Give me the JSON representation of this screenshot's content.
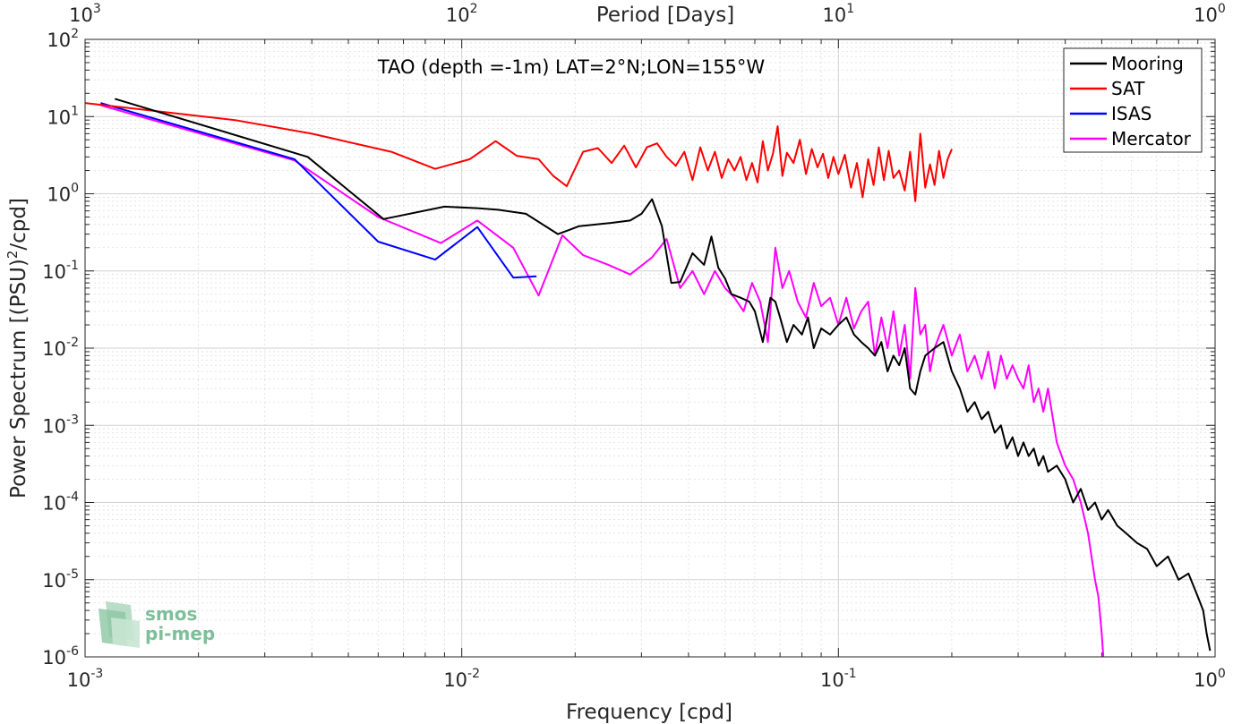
{
  "chart_data": {
    "type": "line",
    "title": "TAO (depth =-1m) LAT=2°N;LON=155°W",
    "xlabel": "Frequency [cpd]",
    "ylabel_main": "Power Spectrum [(PSU)",
    "ylabel_sup": "2",
    "ylabel_tail": "/cpd]",
    "top_axis_label": "Period [Days]",
    "x_scale": "log",
    "y_scale": "log",
    "xlim": [
      0.001,
      1
    ],
    "ylim": [
      1e-06,
      100
    ],
    "grid": true,
    "legend_position": "top-right",
    "x_ticks": [
      {
        "value": 0.001,
        "base": "10",
        "exp": "-3"
      },
      {
        "value": 0.01,
        "base": "10",
        "exp": "-2"
      },
      {
        "value": 0.1,
        "base": "10",
        "exp": "-1"
      },
      {
        "value": 1,
        "base": "10",
        "exp": "0"
      }
    ],
    "y_ticks": [
      {
        "value": 1e-06,
        "base": "10",
        "exp": "-6"
      },
      {
        "value": 1e-05,
        "base": "10",
        "exp": "-5"
      },
      {
        "value": 0.0001,
        "base": "10",
        "exp": "-4"
      },
      {
        "value": 0.001,
        "base": "10",
        "exp": "-3"
      },
      {
        "value": 0.01,
        "base": "10",
        "exp": "-2"
      },
      {
        "value": 0.1,
        "base": "10",
        "exp": "-1"
      },
      {
        "value": 1,
        "base": "10",
        "exp": "0"
      },
      {
        "value": 10,
        "base": "10",
        "exp": "1"
      },
      {
        "value": 100,
        "base": "10",
        "exp": "2"
      }
    ],
    "top_ticks": [
      {
        "value": 0.001,
        "base": "10",
        "exp": "3"
      },
      {
        "value": 0.01,
        "base": "10",
        "exp": "2"
      },
      {
        "value": 0.1,
        "base": "10",
        "exp": "1"
      },
      {
        "value": 1,
        "base": "10",
        "exp": "0"
      }
    ],
    "series": [
      {
        "name": "Mooring",
        "color": "#000000",
        "x": [
          0.0012,
          0.0039,
          0.0062,
          0.009,
          0.011,
          0.0125,
          0.0148,
          0.018,
          0.0205,
          0.025,
          0.028,
          0.03,
          0.032,
          0.034,
          0.036,
          0.038,
          0.041,
          0.044,
          0.046,
          0.048,
          0.05,
          0.052,
          0.055,
          0.058,
          0.06,
          0.063,
          0.066,
          0.068,
          0.07,
          0.073,
          0.076,
          0.08,
          0.083,
          0.086,
          0.09,
          0.095,
          0.1,
          0.105,
          0.11,
          0.115,
          0.12,
          0.125,
          0.13,
          0.135,
          0.14,
          0.145,
          0.15,
          0.155,
          0.16,
          0.165,
          0.17,
          0.18,
          0.19,
          0.2,
          0.21,
          0.22,
          0.23,
          0.24,
          0.25,
          0.26,
          0.27,
          0.28,
          0.29,
          0.3,
          0.31,
          0.32,
          0.33,
          0.34,
          0.35,
          0.36,
          0.38,
          0.4,
          0.42,
          0.44,
          0.46,
          0.48,
          0.5,
          0.52,
          0.55,
          0.58,
          0.62,
          0.66,
          0.7,
          0.75,
          0.8,
          0.85,
          0.9,
          0.93,
          0.95,
          0.97
        ],
        "y": [
          17,
          3.0,
          0.47,
          0.68,
          0.65,
          0.62,
          0.55,
          0.3,
          0.38,
          0.42,
          0.45,
          0.55,
          0.85,
          0.38,
          0.07,
          0.072,
          0.17,
          0.12,
          0.28,
          0.11,
          0.08,
          0.05,
          0.045,
          0.04,
          0.03,
          0.012,
          0.045,
          0.04,
          0.025,
          0.012,
          0.02,
          0.015,
          0.025,
          0.01,
          0.018,
          0.015,
          0.02,
          0.025,
          0.015,
          0.012,
          0.01,
          0.008,
          0.012,
          0.005,
          0.008,
          0.006,
          0.01,
          0.003,
          0.0025,
          0.005,
          0.008,
          0.01,
          0.012,
          0.005,
          0.003,
          0.0015,
          0.002,
          0.0012,
          0.0015,
          0.0008,
          0.001,
          0.0005,
          0.0007,
          0.0004,
          0.0006,
          0.0004,
          0.0005,
          0.0003,
          0.0004,
          0.00025,
          0.0003,
          0.0002,
          0.0001,
          0.00015,
          8e-05,
          0.0001,
          6e-05,
          8e-05,
          5e-05,
          4e-05,
          3e-05,
          2.5e-05,
          1.5e-05,
          2e-05,
          1e-05,
          1.2e-05,
          6e-06,
          4e-06,
          2e-06,
          1.2e-06
        ]
      },
      {
        "name": "SAT",
        "color": "#ff0000",
        "x": [
          0.001,
          0.0025,
          0.004,
          0.0065,
          0.0085,
          0.0105,
          0.0123,
          0.014,
          0.016,
          0.0175,
          0.019,
          0.021,
          0.023,
          0.025,
          0.027,
          0.029,
          0.031,
          0.033,
          0.035,
          0.037,
          0.039,
          0.041,
          0.043,
          0.045,
          0.047,
          0.049,
          0.051,
          0.053,
          0.055,
          0.057,
          0.059,
          0.061,
          0.063,
          0.065,
          0.067,
          0.069,
          0.071,
          0.073,
          0.076,
          0.079,
          0.082,
          0.085,
          0.088,
          0.091,
          0.094,
          0.097,
          0.1,
          0.104,
          0.108,
          0.112,
          0.116,
          0.12,
          0.124,
          0.128,
          0.132,
          0.136,
          0.14,
          0.145,
          0.15,
          0.155,
          0.16,
          0.165,
          0.17,
          0.175,
          0.18,
          0.185,
          0.19,
          0.195,
          0.2
        ],
        "y": [
          15,
          9,
          6,
          3.5,
          2.1,
          2.8,
          4.8,
          3.1,
          2.8,
          1.7,
          1.25,
          3.5,
          3.9,
          2.5,
          4.2,
          2.2,
          4.0,
          4.5,
          3.0,
          2.3,
          3.5,
          1.5,
          4.0,
          2.0,
          3.5,
          1.6,
          2.8,
          2.0,
          3.0,
          1.5,
          2.5,
          1.4,
          4.8,
          2.0,
          3.3,
          7.5,
          1.7,
          3.4,
          2.5,
          5.0,
          1.8,
          3.8,
          2.2,
          3.3,
          1.6,
          3.0,
          1.8,
          3.2,
          1.2,
          2.5,
          0.9,
          2.8,
          1.3,
          4.0,
          1.5,
          3.6,
          1.6,
          2.0,
          1.1,
          3.5,
          0.8,
          6.0,
          1.2,
          2.4,
          1.3,
          3.6,
          1.6,
          2.8,
          3.8
        ]
      },
      {
        "name": "ISAS",
        "color": "#0000ff",
        "x": [
          0.0011,
          0.0036,
          0.006,
          0.0085,
          0.011,
          0.0137,
          0.0158
        ],
        "y": [
          15,
          2.8,
          0.24,
          0.14,
          0.37,
          0.082,
          0.085
        ]
      },
      {
        "name": "Mercator",
        "color": "#ff00ff",
        "x": [
          0.0011,
          0.0036,
          0.006,
          0.0088,
          0.011,
          0.0137,
          0.016,
          0.0185,
          0.021,
          0.0245,
          0.028,
          0.032,
          0.035,
          0.038,
          0.041,
          0.044,
          0.047,
          0.05,
          0.053,
          0.056,
          0.059,
          0.062,
          0.065,
          0.068,
          0.071,
          0.074,
          0.078,
          0.082,
          0.086,
          0.09,
          0.095,
          0.1,
          0.105,
          0.11,
          0.115,
          0.12,
          0.125,
          0.13,
          0.135,
          0.14,
          0.145,
          0.15,
          0.155,
          0.16,
          0.165,
          0.17,
          0.175,
          0.18,
          0.19,
          0.2,
          0.21,
          0.22,
          0.23,
          0.24,
          0.25,
          0.26,
          0.27,
          0.28,
          0.29,
          0.3,
          0.31,
          0.32,
          0.33,
          0.34,
          0.35,
          0.36,
          0.38,
          0.4,
          0.42,
          0.44,
          0.46,
          0.48,
          0.49,
          0.5,
          0.505
        ],
        "y": [
          14,
          2.7,
          0.5,
          0.23,
          0.45,
          0.2,
          0.048,
          0.29,
          0.16,
          0.12,
          0.09,
          0.15,
          0.26,
          0.06,
          0.1,
          0.05,
          0.1,
          0.06,
          0.045,
          0.03,
          0.07,
          0.04,
          0.012,
          0.2,
          0.06,
          0.1,
          0.04,
          0.025,
          0.07,
          0.035,
          0.045,
          0.02,
          0.045,
          0.018,
          0.03,
          0.04,
          0.008,
          0.025,
          0.01,
          0.03,
          0.008,
          0.02,
          0.004,
          0.06,
          0.015,
          0.02,
          0.005,
          0.01,
          0.02,
          0.008,
          0.015,
          0.005,
          0.008,
          0.004,
          0.009,
          0.003,
          0.008,
          0.004,
          0.006,
          0.004,
          0.003,
          0.006,
          0.002,
          0.003,
          0.0015,
          0.003,
          0.0006,
          0.0003,
          0.0002,
          0.0001,
          4e-05,
          1e-05,
          6e-06,
          2e-06,
          1e-06
        ]
      }
    ]
  },
  "logo": {
    "line1": "smos",
    "line2": "pi-mep"
  }
}
